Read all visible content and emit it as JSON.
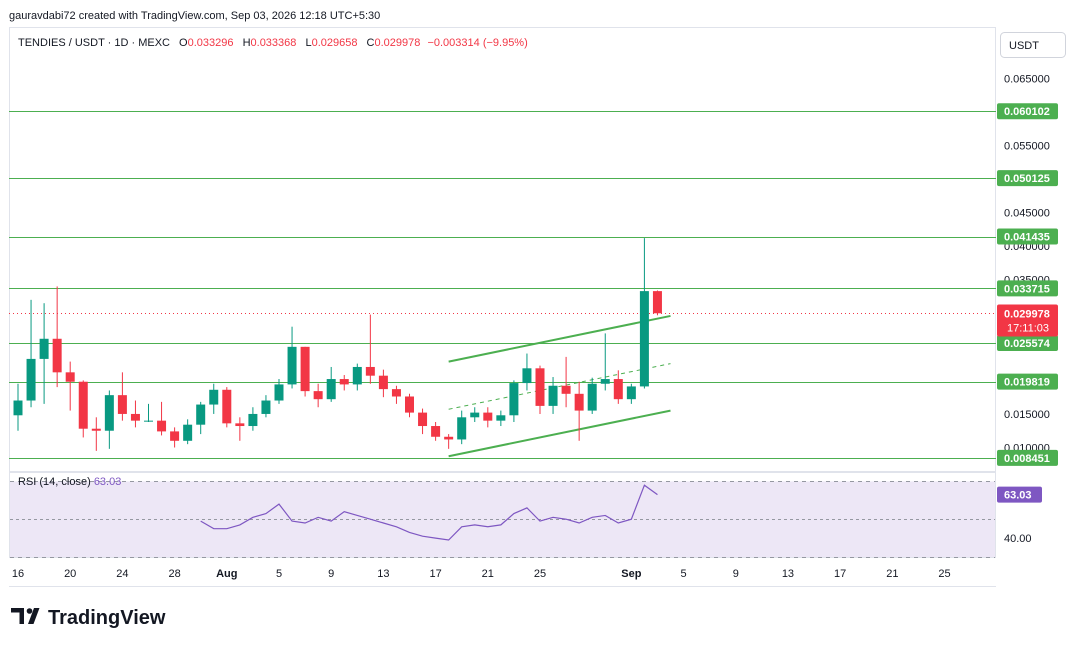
{
  "header": {
    "credit": "gauravdabi72 created with TradingView.com, Sep 03, 2026 12:18 UTC+5:30",
    "symbol": "TENDIES / USDT · 1D · MEXC",
    "o_label": "O",
    "o_value": "0.033296",
    "h_label": "H",
    "h_value": "0.033368",
    "l_label": "L",
    "l_value": "0.029658",
    "c_label": "C",
    "c_value": "0.029978",
    "change": "−0.003314 (−9.95%)"
  },
  "currency_button": "USDT",
  "footer": {
    "brand": "TradingView"
  },
  "colors": {
    "up": "#089981",
    "down": "#f23645",
    "level": "#4caf50",
    "channel": "#4caf50",
    "rsi_line": "#7e57c2",
    "rsi_band": "#ede7f6"
  },
  "chart_data": {
    "type": "candlestick",
    "symbol": "TENDIES / USDT",
    "interval": "1D",
    "exchange": "MEXC",
    "ylim": [
      0.0065,
      0.0725
    ],
    "y_ticks": [
      "0.065000",
      "0.055000",
      "0.050000",
      "0.045000",
      "0.040000",
      "0.035000",
      "0.015000",
      "0.010000"
    ],
    "y_tick_values": [
      0.065,
      0.055,
      0.05,
      0.045,
      0.04,
      0.035,
      0.015,
      0.01
    ],
    "x_ticks": [
      "16",
      "20",
      "24",
      "28",
      "Aug",
      "5",
      "9",
      "13",
      "17",
      "21",
      "25",
      "Sep",
      "5",
      "9",
      "13",
      "17",
      "21",
      "25"
    ],
    "x_tick_days": [
      0,
      4,
      8,
      12,
      16,
      20,
      24,
      28,
      32,
      36,
      40,
      47,
      51,
      55,
      59,
      63,
      67,
      71
    ],
    "candles": [
      {
        "d": 0,
        "o": 0.0148,
        "h": 0.0195,
        "l": 0.0125,
        "c": 0.017
      },
      {
        "d": 1,
        "o": 0.017,
        "h": 0.032,
        "l": 0.016,
        "c": 0.0232
      },
      {
        "d": 2,
        "o": 0.0232,
        "h": 0.0315,
        "l": 0.0165,
        "c": 0.0262
      },
      {
        "d": 3,
        "o": 0.0262,
        "h": 0.034,
        "l": 0.019,
        "c": 0.0212
      },
      {
        "d": 4,
        "o": 0.0212,
        "h": 0.0228,
        "l": 0.0155,
        "c": 0.0198
      },
      {
        "d": 5,
        "o": 0.0198,
        "h": 0.02,
        "l": 0.0115,
        "c": 0.0128
      },
      {
        "d": 6,
        "o": 0.0128,
        "h": 0.0145,
        "l": 0.0095,
        "c": 0.0125
      },
      {
        "d": 7,
        "o": 0.0125,
        "h": 0.0185,
        "l": 0.0098,
        "c": 0.0178
      },
      {
        "d": 8,
        "o": 0.0178,
        "h": 0.0212,
        "l": 0.014,
        "c": 0.015
      },
      {
        "d": 9,
        "o": 0.015,
        "h": 0.017,
        "l": 0.013,
        "c": 0.014
      },
      {
        "d": 10,
        "o": 0.014,
        "h": 0.0165,
        "l": 0.0138,
        "c": 0.014
      },
      {
        "d": 11,
        "o": 0.014,
        "h": 0.0168,
        "l": 0.0118,
        "c": 0.0124
      },
      {
        "d": 12,
        "o": 0.0124,
        "h": 0.013,
        "l": 0.01,
        "c": 0.011
      },
      {
        "d": 13,
        "o": 0.011,
        "h": 0.0142,
        "l": 0.0105,
        "c": 0.0134
      },
      {
        "d": 14,
        "o": 0.0134,
        "h": 0.0168,
        "l": 0.012,
        "c": 0.0164
      },
      {
        "d": 15,
        "o": 0.0164,
        "h": 0.0195,
        "l": 0.015,
        "c": 0.0186
      },
      {
        "d": 16,
        "o": 0.0186,
        "h": 0.019,
        "l": 0.013,
        "c": 0.0136
      },
      {
        "d": 17,
        "o": 0.0136,
        "h": 0.0145,
        "l": 0.011,
        "c": 0.0132
      },
      {
        "d": 18,
        "o": 0.0132,
        "h": 0.016,
        "l": 0.0125,
        "c": 0.015
      },
      {
        "d": 19,
        "o": 0.015,
        "h": 0.0178,
        "l": 0.0145,
        "c": 0.017
      },
      {
        "d": 20,
        "o": 0.017,
        "h": 0.0202,
        "l": 0.0165,
        "c": 0.0194
      },
      {
        "d": 21,
        "o": 0.0194,
        "h": 0.028,
        "l": 0.0188,
        "c": 0.025
      },
      {
        "d": 22,
        "o": 0.025,
        "h": 0.025,
        "l": 0.0176,
        "c": 0.0184
      },
      {
        "d": 23,
        "o": 0.0184,
        "h": 0.0195,
        "l": 0.016,
        "c": 0.0172
      },
      {
        "d": 24,
        "o": 0.0172,
        "h": 0.022,
        "l": 0.0168,
        "c": 0.0202
      },
      {
        "d": 25,
        "o": 0.0202,
        "h": 0.0208,
        "l": 0.0185,
        "c": 0.0194
      },
      {
        "d": 26,
        "o": 0.0194,
        "h": 0.0225,
        "l": 0.0185,
        "c": 0.022
      },
      {
        "d": 27,
        "o": 0.022,
        "h": 0.0298,
        "l": 0.0195,
        "c": 0.0207
      },
      {
        "d": 28,
        "o": 0.0207,
        "h": 0.0216,
        "l": 0.0175,
        "c": 0.0187
      },
      {
        "d": 29,
        "o": 0.0187,
        "h": 0.0192,
        "l": 0.0165,
        "c": 0.0176
      },
      {
        "d": 30,
        "o": 0.0176,
        "h": 0.018,
        "l": 0.0145,
        "c": 0.0152
      },
      {
        "d": 31,
        "o": 0.0152,
        "h": 0.0158,
        "l": 0.012,
        "c": 0.0132
      },
      {
        "d": 32,
        "o": 0.0132,
        "h": 0.0138,
        "l": 0.011,
        "c": 0.0116
      },
      {
        "d": 33,
        "o": 0.0116,
        "h": 0.012,
        "l": 0.0098,
        "c": 0.0112
      },
      {
        "d": 34,
        "o": 0.0112,
        "h": 0.0155,
        "l": 0.0105,
        "c": 0.0145
      },
      {
        "d": 35,
        "o": 0.0145,
        "h": 0.016,
        "l": 0.0138,
        "c": 0.0152
      },
      {
        "d": 36,
        "o": 0.0152,
        "h": 0.016,
        "l": 0.013,
        "c": 0.014
      },
      {
        "d": 37,
        "o": 0.014,
        "h": 0.0155,
        "l": 0.0132,
        "c": 0.0148
      },
      {
        "d": 38,
        "o": 0.0148,
        "h": 0.02,
        "l": 0.0138,
        "c": 0.0196
      },
      {
        "d": 39,
        "o": 0.0196,
        "h": 0.024,
        "l": 0.0185,
        "c": 0.0218
      },
      {
        "d": 40,
        "o": 0.0218,
        "h": 0.0222,
        "l": 0.015,
        "c": 0.0162
      },
      {
        "d": 41,
        "o": 0.0162,
        "h": 0.0205,
        "l": 0.015,
        "c": 0.0192
      },
      {
        "d": 42,
        "o": 0.0192,
        "h": 0.0235,
        "l": 0.016,
        "c": 0.018
      },
      {
        "d": 43,
        "o": 0.018,
        "h": 0.0198,
        "l": 0.011,
        "c": 0.0155
      },
      {
        "d": 44,
        "o": 0.0155,
        "h": 0.0204,
        "l": 0.015,
        "c": 0.0195
      },
      {
        "d": 45,
        "o": 0.0195,
        "h": 0.027,
        "l": 0.0185,
        "c": 0.0202
      },
      {
        "d": 46,
        "o": 0.0202,
        "h": 0.0215,
        "l": 0.0165,
        "c": 0.0172
      },
      {
        "d": 47,
        "o": 0.0172,
        "h": 0.0195,
        "l": 0.0165,
        "c": 0.0191
      },
      {
        "d": 48,
        "o": 0.0191,
        "h": 0.0412,
        "l": 0.0188,
        "c": 0.0333
      },
      {
        "d": 49,
        "o": 0.0333,
        "h": 0.0334,
        "l": 0.0297,
        "c": 0.03
      }
    ],
    "levels": [
      {
        "value": 0.060102,
        "label": "0.060102"
      },
      {
        "value": 0.050125,
        "label": "0.050125"
      },
      {
        "value": 0.041435,
        "label": "0.041435"
      },
      {
        "value": 0.033715,
        "label": "0.033715"
      },
      {
        "value": 0.025574,
        "label": "0.025574"
      },
      {
        "value": 0.019819,
        "label": "0.019819"
      },
      {
        "value": 0.008451,
        "label": "0.008451"
      }
    ],
    "last_price": {
      "label": "0.029978",
      "countdown": "17:11:03",
      "value": 0.029978
    },
    "channel": {
      "upper": [
        [
          33,
          0.0228
        ],
        [
          50,
          0.0296
        ]
      ],
      "lower": [
        [
          33,
          0.0087
        ],
        [
          50,
          0.0155
        ]
      ],
      "mid": [
        [
          33,
          0.0157
        ],
        [
          50,
          0.0225
        ]
      ]
    },
    "rsi": {
      "label": "RSI (14, close)",
      "value_label": "63.03",
      "level_label": "40.00",
      "ylim": [
        30,
        75
      ],
      "upper_band": 70,
      "lower_band": 30,
      "mid": 50,
      "values": [
        {
          "d": 14,
          "v": 49
        },
        {
          "d": 15,
          "v": 45
        },
        {
          "d": 16,
          "v": 45
        },
        {
          "d": 17,
          "v": 47
        },
        {
          "d": 18,
          "v": 51
        },
        {
          "d": 19,
          "v": 53
        },
        {
          "d": 20,
          "v": 58
        },
        {
          "d": 21,
          "v": 49
        },
        {
          "d": 22,
          "v": 48
        },
        {
          "d": 23,
          "v": 51
        },
        {
          "d": 24,
          "v": 49
        },
        {
          "d": 25,
          "v": 54
        },
        {
          "d": 26,
          "v": 52
        },
        {
          "d": 27,
          "v": 50
        },
        {
          "d": 28,
          "v": 48
        },
        {
          "d": 29,
          "v": 46
        },
        {
          "d": 30,
          "v": 43
        },
        {
          "d": 31,
          "v": 41
        },
        {
          "d": 32,
          "v": 40
        },
        {
          "d": 33,
          "v": 39
        },
        {
          "d": 34,
          "v": 46
        },
        {
          "d": 35,
          "v": 47
        },
        {
          "d": 36,
          "v": 46
        },
        {
          "d": 37,
          "v": 47
        },
        {
          "d": 38,
          "v": 53
        },
        {
          "d": 39,
          "v": 56
        },
        {
          "d": 40,
          "v": 49
        },
        {
          "d": 41,
          "v": 51
        },
        {
          "d": 42,
          "v": 50
        },
        {
          "d": 43,
          "v": 48
        },
        {
          "d": 44,
          "v": 51
        },
        {
          "d": 45,
          "v": 52
        },
        {
          "d": 46,
          "v": 48
        },
        {
          "d": 47,
          "v": 50
        },
        {
          "d": 48,
          "v": 68
        },
        {
          "d": 49,
          "v": 63
        }
      ]
    }
  }
}
